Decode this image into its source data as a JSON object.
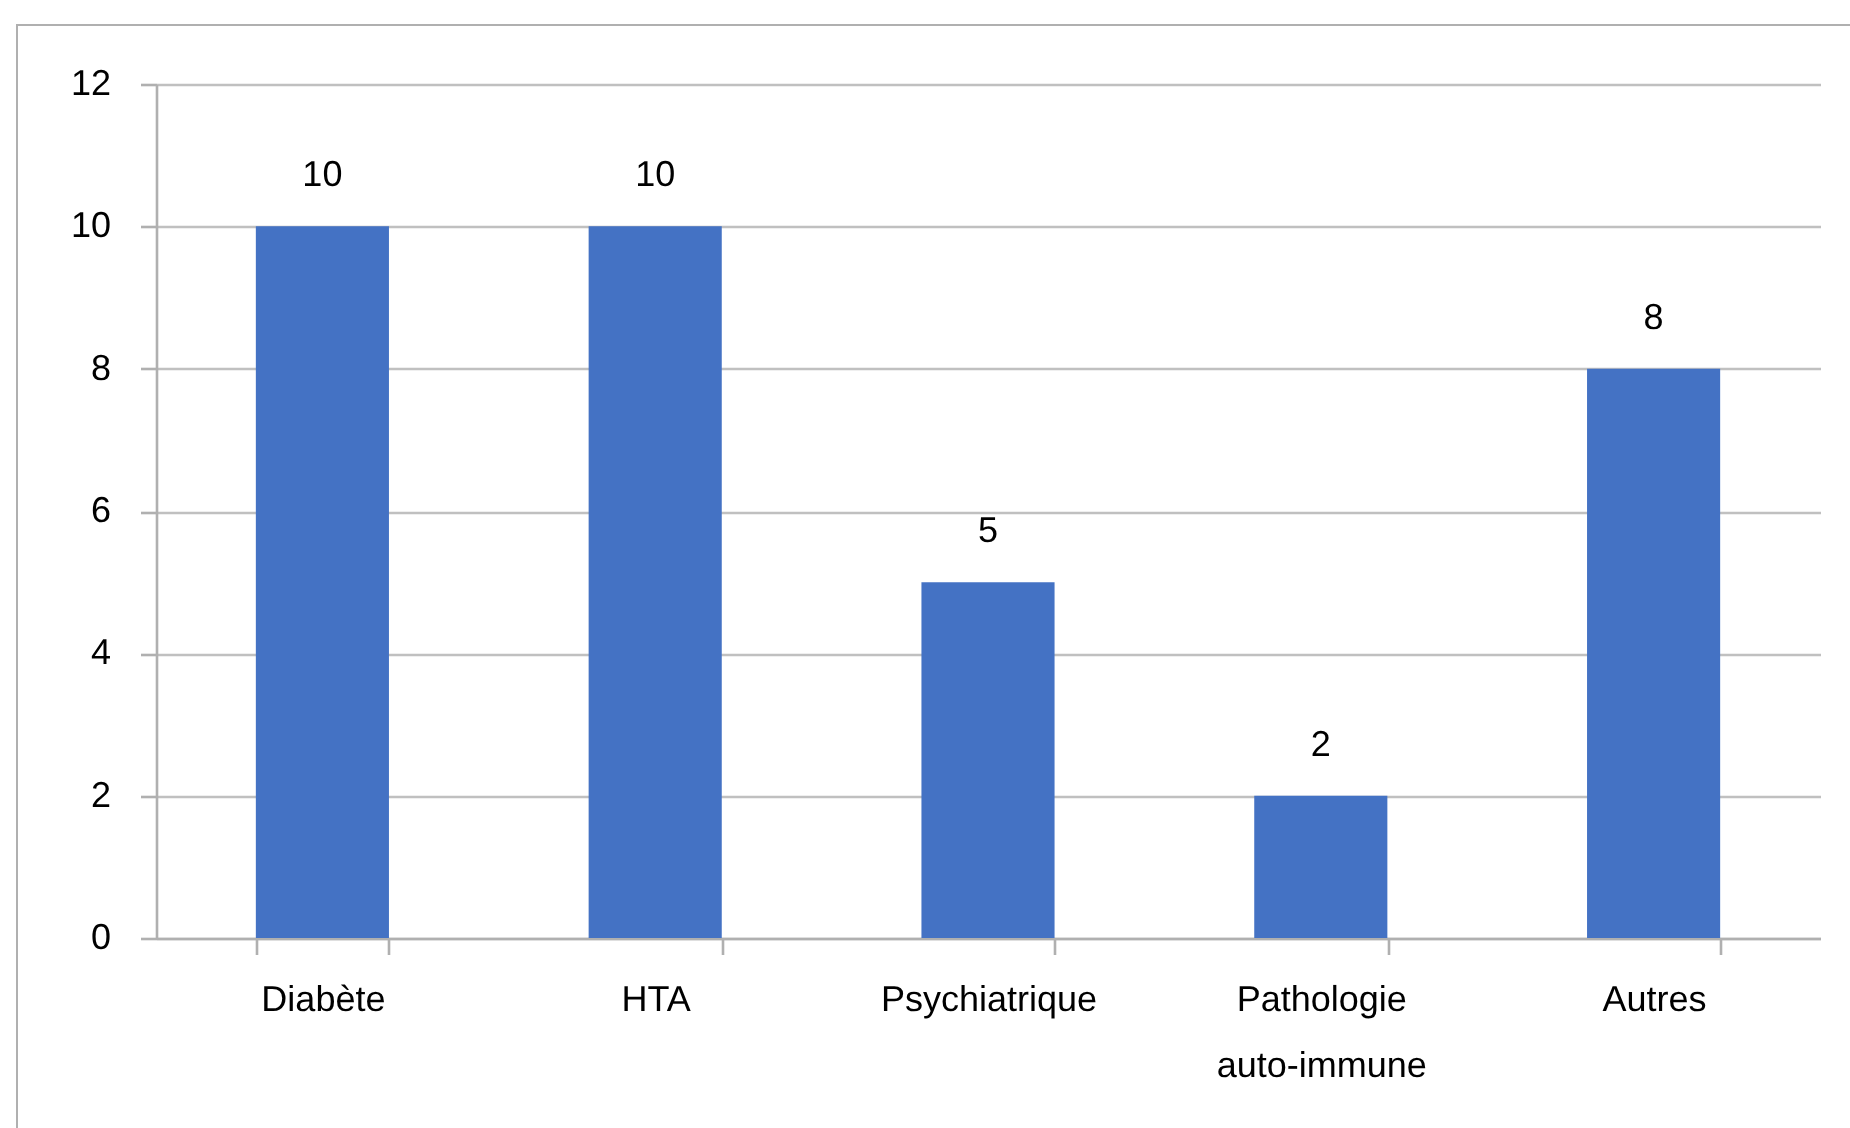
{
  "chart_data": {
    "type": "bar",
    "categories": [
      "Diabète",
      "HTA",
      "Psychiatrique",
      "Pathologie auto-immune",
      "Autres"
    ],
    "values": [
      10,
      10,
      5,
      2,
      8
    ],
    "color": "#4472c4",
    "ylim": [
      0,
      12
    ],
    "yticks": [
      0,
      2,
      4,
      6,
      8,
      10,
      12
    ],
    "grid": "y",
    "data_labels": true
  }
}
